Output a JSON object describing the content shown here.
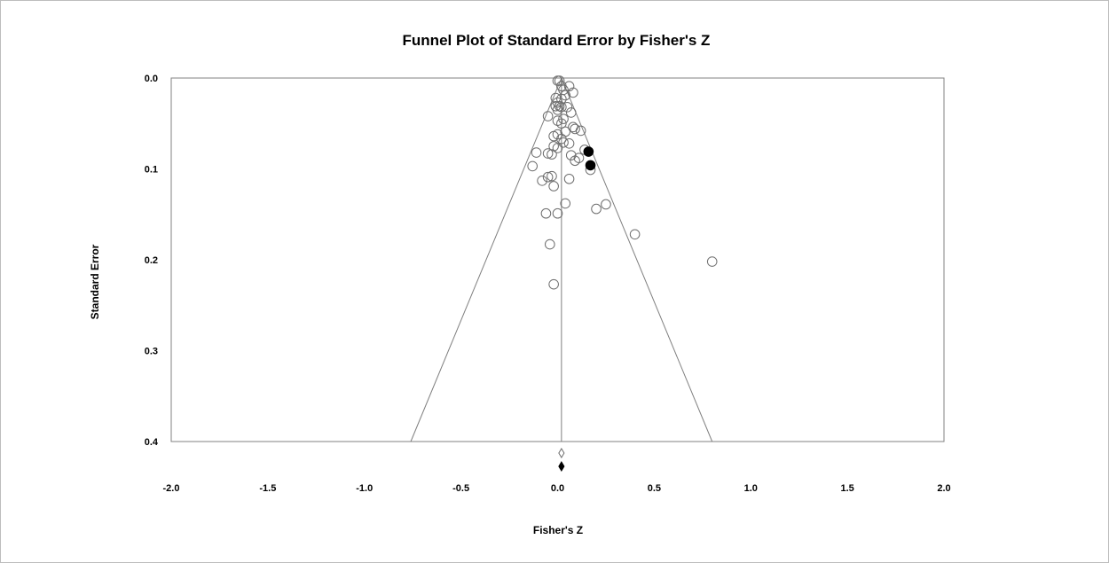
{
  "chart_data": {
    "type": "scatter",
    "title": "Funnel Plot of Standard Error by Fisher's Z",
    "xlabel": "Fisher's Z",
    "ylabel": "Standard Error",
    "xlim": [
      -2.0,
      2.0
    ],
    "ylim": [
      0.0,
      0.4
    ],
    "y_inverted": true,
    "x_ticks": [
      "-2.0",
      "-1.5",
      "-1.0",
      "-0.5",
      "0.0",
      "0.5",
      "1.0",
      "1.5",
      "2.0"
    ],
    "y_ticks": [
      "0.0",
      "0.1",
      "0.2",
      "0.3",
      "0.4"
    ],
    "funnel": {
      "center": 0.02,
      "se_max": 0.4,
      "lower_at_max": -0.76,
      "upper_at_max": 0.8
    },
    "series": [
      {
        "marker": "open-circle",
        "points": [
          [
            0.0,
            0.003
          ],
          [
            0.01,
            0.003
          ],
          [
            0.02,
            0.009
          ],
          [
            0.06,
            0.009
          ],
          [
            0.03,
            0.013
          ],
          [
            0.08,
            0.016
          ],
          [
            0.04,
            0.019
          ],
          [
            -0.01,
            0.022
          ],
          [
            0.02,
            0.023
          ],
          [
            0.0,
            0.027
          ],
          [
            -0.01,
            0.031
          ],
          [
            0.01,
            0.031
          ],
          [
            0.02,
            0.032
          ],
          [
            0.05,
            0.032
          ],
          [
            0.0,
            0.035
          ],
          [
            0.07,
            0.038
          ],
          [
            -0.05,
            0.042
          ],
          [
            0.03,
            0.045
          ],
          [
            0.0,
            0.047
          ],
          [
            0.02,
            0.05
          ],
          [
            0.08,
            0.054
          ],
          [
            0.09,
            0.056
          ],
          [
            0.12,
            0.058
          ],
          [
            0.04,
            0.059
          ],
          [
            0.0,
            0.062
          ],
          [
            -0.02,
            0.064
          ],
          [
            0.02,
            0.067
          ],
          [
            0.03,
            0.071
          ],
          [
            0.06,
            0.072
          ],
          [
            -0.02,
            0.075
          ],
          [
            0.0,
            0.077
          ],
          [
            0.14,
            0.079
          ],
          [
            -0.11,
            0.082
          ],
          [
            -0.05,
            0.083
          ],
          [
            -0.03,
            0.084
          ],
          [
            0.07,
            0.085
          ],
          [
            0.09,
            0.091
          ],
          [
            0.11,
            0.088
          ],
          [
            -0.13,
            0.097
          ],
          [
            0.17,
            0.101
          ],
          [
            -0.03,
            0.108
          ],
          [
            -0.05,
            0.109
          ],
          [
            0.06,
            0.111
          ],
          [
            -0.08,
            0.113
          ],
          [
            -0.02,
            0.119
          ],
          [
            0.04,
            0.138
          ],
          [
            0.25,
            0.139
          ],
          [
            0.2,
            0.144
          ],
          [
            -0.06,
            0.149
          ],
          [
            0.0,
            0.149
          ],
          [
            0.4,
            0.172
          ],
          [
            -0.04,
            0.183
          ],
          [
            0.8,
            0.202
          ],
          [
            -0.02,
            0.227
          ]
        ]
      },
      {
        "marker": "filled-circle",
        "points": [
          [
            0.16,
            0.081
          ],
          [
            0.17,
            0.096
          ]
        ]
      }
    ],
    "summary_markers": [
      {
        "x": 0.02,
        "style": "open-diamond"
      },
      {
        "x": 0.02,
        "style": "filled-diamond"
      }
    ]
  }
}
